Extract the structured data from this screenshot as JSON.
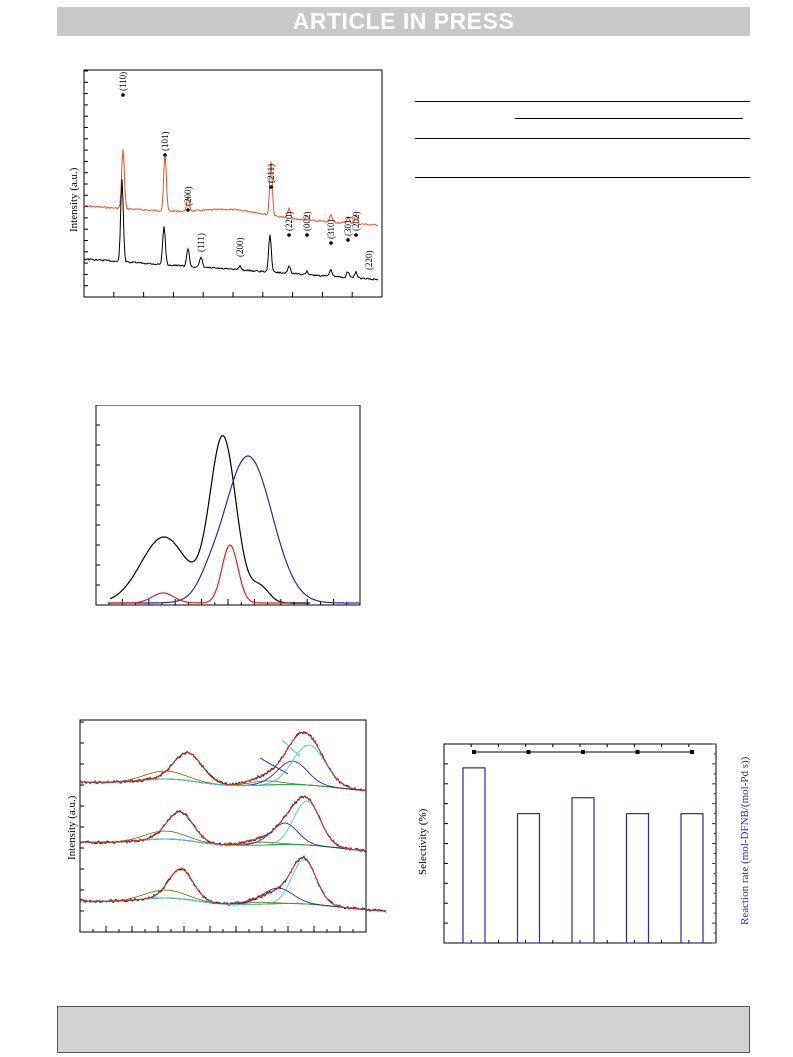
{
  "banner": {
    "text": "ARTICLE IN PRESS"
  },
  "xrd": {
    "ylabel": "Intensity (a.u.)",
    "top_peaks": [
      "(110)",
      "(101)",
      "(200)",
      "(211)",
      "(220)",
      "(002)",
      "(310)",
      "(301)",
      "(202)"
    ],
    "bottom_peaks": [
      "(111)",
      "(200)",
      "(220)"
    ],
    "colors": {
      "top": "#e8502a",
      "bottom": "#000000"
    }
  },
  "tpr": {
    "colors": {
      "black": "#000000",
      "blue": "#2a2a9a",
      "red": "#e02020"
    }
  },
  "xps": {
    "ylabel": "Intensity (a.u.)",
    "colors": {
      "raw": "#000000",
      "fit": "#e02020",
      "comp1": "#22aa44",
      "comp2": "#6b6b00",
      "comp3": "#2a2aa0",
      "comp4": "#48c8d8"
    }
  },
  "chart_data": {
    "type": "bar",
    "ylabel_left": "Selectivity (%)",
    "ylabel_right": "Reaction rate (mol-DFNB/(mol-Pd s))",
    "series": [
      {
        "kind": "line",
        "values": [
          0.96,
          0.96,
          0.96,
          0.96,
          0.96
        ]
      },
      {
        "kind": "bar",
        "values": [
          0.88,
          0.65,
          0.73,
          0.65,
          0.65
        ]
      }
    ],
    "colors": {
      "bar": "#2a2a9a",
      "line": "#000000"
    }
  }
}
